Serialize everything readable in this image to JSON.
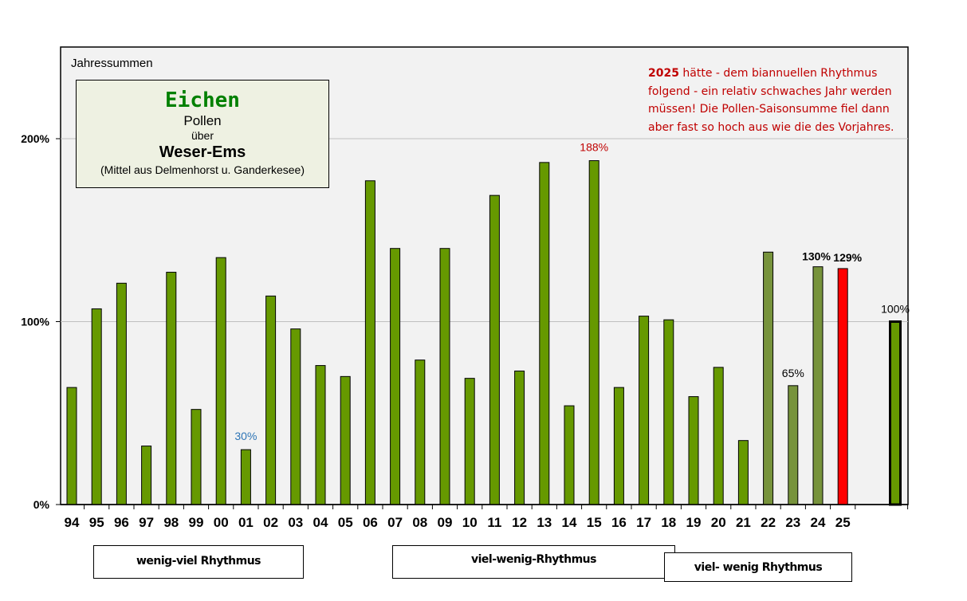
{
  "chart_data": {
    "type": "bar",
    "title": "Jahressummen",
    "categories": [
      "94",
      "95",
      "96",
      "97",
      "98",
      "99",
      "00",
      "01",
      "02",
      "03",
      "04",
      "05",
      "06",
      "07",
      "08",
      "09",
      "10",
      "11",
      "12",
      "13",
      "14",
      "15",
      "16",
      "17",
      "18",
      "19",
      "20",
      "21",
      "22",
      "23",
      "24",
      "25",
      ""
    ],
    "values": [
      64,
      107,
      121,
      32,
      127,
      52,
      135,
      30,
      114,
      96,
      76,
      70,
      177,
      140,
      79,
      140,
      69,
      169,
      73,
      187,
      54,
      188,
      64,
      103,
      101,
      59,
      75,
      35,
      138,
      65,
      130,
      129,
      100
    ],
    "bar_colors": [
      "#669900",
      "#669900",
      "#669900",
      "#669900",
      "#669900",
      "#669900",
      "#669900",
      "#669900",
      "#669900",
      "#669900",
      "#669900",
      "#669900",
      "#669900",
      "#669900",
      "#669900",
      "#669900",
      "#669900",
      "#669900",
      "#669900",
      "#669900",
      "#669900",
      "#669900",
      "#669900",
      "#669900",
      "#669900",
      "#669900",
      "#669900",
      "#669900",
      "#77933c",
      "#77933c",
      "#77933c",
      "#ff0000",
      "#669900"
    ],
    "data_labels": [
      {
        "index": 7,
        "text": "30%",
        "color": "#2e75b6"
      },
      {
        "index": 21,
        "text": "188%",
        "color": "#c00000"
      },
      {
        "index": 29,
        "text": "65%",
        "color": "#000000"
      },
      {
        "index": 30,
        "text": "130%",
        "color": "#000000",
        "bold": true
      },
      {
        "index": 31,
        "text": "129%",
        "color": "#000000",
        "bold": true
      },
      {
        "index": 32,
        "text": "100%",
        "color": "#000000"
      }
    ],
    "yticks": [
      "0%",
      "100%",
      "200%"
    ],
    "ytick_values": [
      0,
      100,
      200
    ],
    "ylim": [
      0,
      250
    ],
    "grid": true
  },
  "infobox": {
    "line1": "Eichen",
    "line2": "Pollen",
    "line3": "über",
    "line4": "Weser-Ems",
    "line5": "(Mittel aus Delmenhorst  u. Ganderkesee)"
  },
  "note": {
    "year": "2025",
    "text": " hätte - dem biannuellen Rhythmus folgend - ein relativ schwaches Jahr werden müssen! Die Pollen-Saisonsumme fiel dann aber fast so hoch aus wie die des Vorjahres."
  },
  "rhythm_boxes": [
    "wenig-viel Rhythmus",
    "viel-wenig-Rhythmus",
    "viel- wenig Rhythmus"
  ],
  "colors": {
    "plot_background": "#f2f2f2",
    "bar_default": "#669900",
    "bar_late": "#77933c",
    "bar_highlight": "#ff0000",
    "note_text": "#c00000",
    "title_green": "#008000"
  }
}
